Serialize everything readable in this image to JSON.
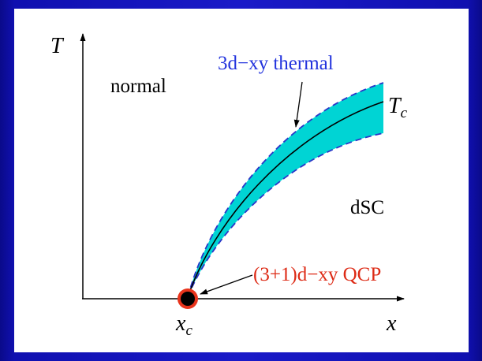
{
  "diagram": {
    "axes": {
      "y_label": "T",
      "x_label": "x"
    },
    "regions": {
      "normal": "normal",
      "dsc": "dSC"
    },
    "curve_label": {
      "main": "T",
      "sub": "c"
    },
    "critical_point_label": {
      "main": "x",
      "sub": "c"
    },
    "annotations": {
      "thermal": "3d−xy thermal",
      "qcp": "(3+1)d−xy QCP"
    },
    "colors": {
      "band_fill": "#00d4d4",
      "band_edge": "#2a36c8",
      "curve": "#000000",
      "thermal_label": "#2233dd",
      "qcp_label": "#dd2a15",
      "qcp_ring": "#e8341c",
      "qcp_dot": "#000000",
      "background": "#1a1ac8"
    }
  }
}
